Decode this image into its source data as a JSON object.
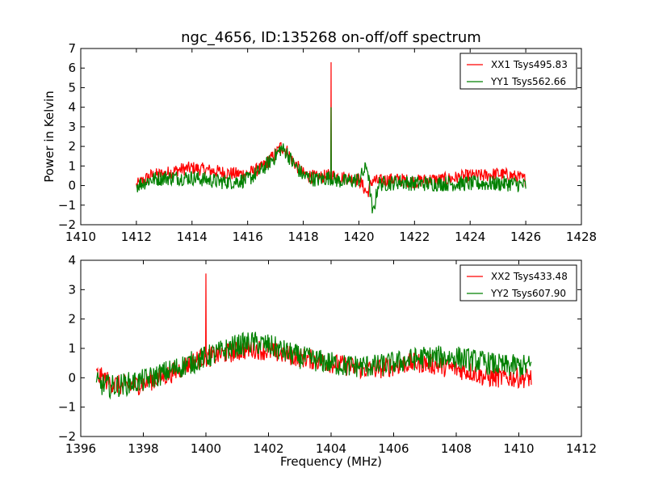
{
  "figure": {
    "title": "ngc_4656, ID:135268 on-off/off spectrum",
    "ylabel": "Power in Kelvin",
    "xlabel": "Frequency (MHz)"
  },
  "chart_data": [
    {
      "type": "line",
      "title": "ngc_4656, ID:135268 on-off/off spectrum",
      "ylabel": "Power in Kelvin",
      "xlabel": "",
      "xlim": [
        1410,
        1428
      ],
      "ylim": [
        -2,
        7
      ],
      "xticks": [
        1410,
        1412,
        1414,
        1416,
        1418,
        1420,
        1422,
        1424,
        1426,
        1428
      ],
      "yticks": [
        -2,
        -1,
        0,
        1,
        2,
        3,
        4,
        5,
        6,
        7
      ],
      "legend_position": "top-right",
      "series": [
        {
          "name": "XX1 Tsys495.83",
          "color": "#ff0000",
          "x": [
            1412.0,
            1412.5,
            1413.0,
            1413.5,
            1414.0,
            1414.5,
            1415.0,
            1415.5,
            1416.0,
            1416.5,
            1417.0,
            1417.2,
            1417.4,
            1417.6,
            1418.0,
            1418.5,
            1418.9,
            1419.0,
            1419.1,
            1419.5,
            1420.0,
            1420.3,
            1420.5,
            1420.7,
            1421.0,
            1421.5,
            1422.0,
            1422.5,
            1423.0,
            1423.5,
            1424.0,
            1424.5,
            1425.0,
            1425.5,
            1426.0
          ],
          "y": [
            0.0,
            0.5,
            0.6,
            0.8,
            0.9,
            0.8,
            0.7,
            0.6,
            0.6,
            0.9,
            1.6,
            2.0,
            1.8,
            1.3,
            0.6,
            0.4,
            0.5,
            6.3,
            0.5,
            0.4,
            0.3,
            -0.4,
            0.3,
            0.2,
            0.3,
            0.3,
            0.2,
            0.3,
            0.3,
            0.4,
            0.5,
            0.5,
            0.6,
            0.5,
            0.3
          ],
          "noise": 0.35
        },
        {
          "name": "YY1 Tsys562.66",
          "color": "#008000",
          "x": [
            1412.0,
            1412.5,
            1413.0,
            1413.5,
            1414.0,
            1414.5,
            1415.0,
            1415.5,
            1416.0,
            1416.5,
            1417.0,
            1417.2,
            1417.4,
            1417.6,
            1418.0,
            1418.5,
            1418.9,
            1419.0,
            1419.1,
            1419.5,
            1420.0,
            1420.3,
            1420.5,
            1420.7,
            1421.0,
            1421.5,
            1422.0,
            1422.5,
            1423.0,
            1423.5,
            1424.0,
            1424.5,
            1425.0,
            1425.5,
            1426.0
          ],
          "y": [
            0.0,
            0.3,
            0.4,
            0.4,
            0.4,
            0.3,
            0.2,
            0.2,
            0.3,
            0.8,
            1.5,
            1.9,
            1.7,
            1.2,
            0.5,
            0.3,
            0.4,
            4.0,
            0.3,
            0.2,
            0.3,
            1.0,
            -1.5,
            0.1,
            0.1,
            0.2,
            0.1,
            0.1,
            0.1,
            0.1,
            0.1,
            0.1,
            0.1,
            0.1,
            0.0
          ],
          "noise": 0.4
        }
      ]
    },
    {
      "type": "line",
      "title": "",
      "ylabel": "",
      "xlabel": "Frequency (MHz)",
      "xlim": [
        1396,
        1412
      ],
      "ylim": [
        -2,
        4
      ],
      "xticks": [
        1396,
        1398,
        1400,
        1402,
        1404,
        1406,
        1408,
        1410,
        1412
      ],
      "yticks": [
        -2,
        -1,
        0,
        1,
        2,
        3,
        4
      ],
      "legend_position": "top-right",
      "series": [
        {
          "name": "XX2 Tsys433.48",
          "color": "#ff0000",
          "x": [
            1396.5,
            1397.0,
            1397.5,
            1398.0,
            1398.5,
            1399.0,
            1399.5,
            1399.9,
            1400.0,
            1400.1,
            1400.5,
            1401.0,
            1401.5,
            1402.0,
            1402.5,
            1403.0,
            1403.5,
            1404.0,
            1404.5,
            1405.0,
            1405.5,
            1406.0,
            1406.5,
            1407.0,
            1407.5,
            1408.0,
            1408.5,
            1409.0,
            1409.5,
            1410.0,
            1410.4
          ],
          "y": [
            0.1,
            -0.2,
            -0.3,
            -0.2,
            0.0,
            0.2,
            0.5,
            0.7,
            3.55,
            0.7,
            0.8,
            0.9,
            1.0,
            0.9,
            0.8,
            0.7,
            0.6,
            0.5,
            0.4,
            0.3,
            0.3,
            0.4,
            0.5,
            0.5,
            0.4,
            0.3,
            0.2,
            0.0,
            0.0,
            0.0,
            0.0
          ],
          "noise": 0.35
        },
        {
          "name": "YY2 Tsys607.90",
          "color": "#008000",
          "x": [
            1396.5,
            1397.0,
            1397.5,
            1398.0,
            1398.5,
            1399.0,
            1399.5,
            1400.0,
            1400.5,
            1401.0,
            1401.5,
            1402.0,
            1402.5,
            1403.0,
            1403.5,
            1404.0,
            1404.5,
            1405.0,
            1405.5,
            1406.0,
            1406.5,
            1407.0,
            1407.5,
            1408.0,
            1408.5,
            1409.0,
            1409.5,
            1410.0,
            1410.4
          ],
          "y": [
            -0.2,
            -0.3,
            -0.2,
            -0.1,
            0.1,
            0.3,
            0.5,
            0.7,
            0.9,
            1.1,
            1.2,
            1.1,
            0.9,
            0.7,
            0.6,
            0.5,
            0.4,
            0.4,
            0.4,
            0.5,
            0.6,
            0.7,
            0.7,
            0.7,
            0.6,
            0.5,
            0.4,
            0.4,
            0.4
          ],
          "noise": 0.4
        }
      ]
    }
  ]
}
